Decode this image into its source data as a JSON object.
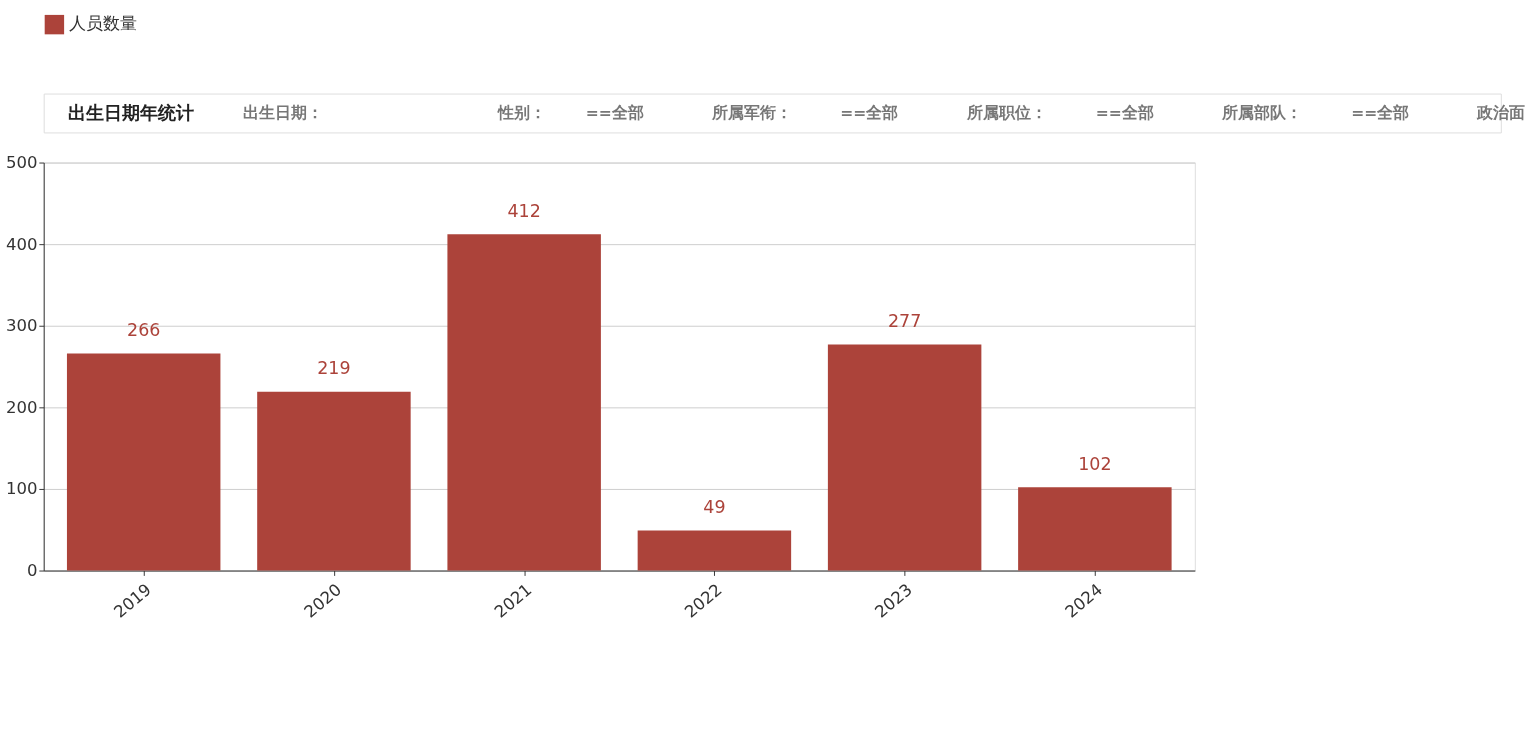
{
  "chart_data": {
    "type": "bar",
    "title": "出生日期年统计",
    "annotations": [
      "出生日期：",
      "性别：",
      "==全部",
      "所属军衔：",
      "==全部",
      "所属职位：",
      "==全部",
      "所属部队：",
      "==全部",
      "政治面"
    ],
    "categories": [
      "2019",
      "2020",
      "2021",
      "2022",
      "2023",
      "2024"
    ],
    "series": [
      {
        "name": "人员数量",
        "color": "#ac433a",
        "values": [
          266,
          219,
          412,
          49,
          277,
          102
        ]
      }
    ],
    "ylim": [
      0,
      500
    ],
    "yticks": [
      0,
      100,
      200,
      300,
      400,
      500
    ],
    "grid": "y",
    "legend": "top left",
    "data_labels": true
  }
}
